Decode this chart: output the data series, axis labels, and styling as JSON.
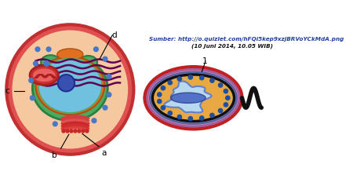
{
  "bg_color": "#ffffff",
  "source_text": "Sumber: http://o.quizlet.com/hFQi5kep9xzjBRVoYCkMdA.png",
  "date_text": "(10 Juni 2014, 10.05 WIB)",
  "label_a": "a",
  "label_b": "b",
  "label_c": "c",
  "label_d": "d",
  "label_1": "1",
  "euk_outer_color": "#e05050",
  "euk_outer_edge": "#c03030",
  "euk_cytoplasm": "#f5c8a0",
  "euk_nucleus_green": "#4aaa60",
  "euk_nucleus_green_edge": "#2a8040",
  "euk_nucleus_blue": "#70c0e0",
  "euk_nucleus_orange_ring": "#e07020",
  "euk_nucleolus": "#3850b0",
  "euk_golgi_red1": "#e04040",
  "euk_golgi_red2": "#c03030",
  "euk_dot_blue": "#4878c8",
  "euk_er_purple": "#600050",
  "euk_vacuole_red": "#cc3030",
  "euk_vacuole_inner": "#e86060",
  "pro_outer_red": "#e04040",
  "pro_outer_edge": "#c02020",
  "pro_ring_pink": "#d080b0",
  "pro_ring_blue": "#8090c8",
  "pro_cytoplasm": "#e8a844",
  "pro_cytoplasm_edge": "#111111",
  "pro_nucleoid_light": "#b8d8f0",
  "pro_nucleoid_blue": "#4060c0",
  "pro_nucleoid_edge": "#6080d0",
  "pro_dot_blue": "#2050a0",
  "pro_flagella": "#111111",
  "text_source_color": "#2040a0",
  "text_date_color": "#111111"
}
